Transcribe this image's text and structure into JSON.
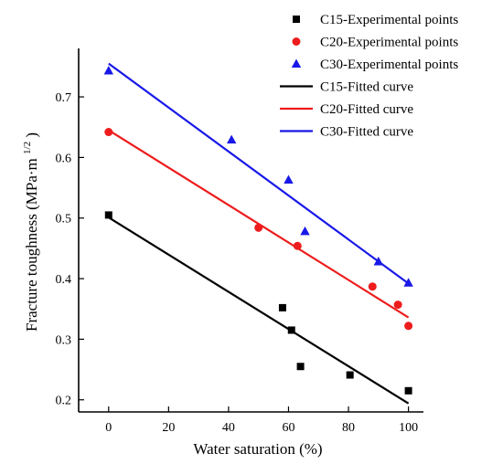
{
  "chart_data": {
    "type": "scatter",
    "xlabel": "Water saturation (%)",
    "ylabel": {
      "main": "Fracture toughness (MPa·m",
      "sup": "1/2",
      "close": ")"
    },
    "xlim": [
      -10,
      105
    ],
    "ylim": [
      0.18,
      0.78
    ],
    "xticks": [
      0,
      20,
      40,
      60,
      80,
      100
    ],
    "yticks": [
      0.2,
      0.3,
      0.4,
      0.5,
      0.6,
      0.7
    ],
    "legend_position": "top-right",
    "series": [
      {
        "name": "C15-Experimental points",
        "kind": "points",
        "marker": "square",
        "color": "#000000",
        "points": [
          {
            "x": 0,
            "y": 0.505
          },
          {
            "x": 58,
            "y": 0.352
          },
          {
            "x": 61,
            "y": 0.315
          },
          {
            "x": 64,
            "y": 0.255
          },
          {
            "x": 80.5,
            "y": 0.241
          },
          {
            "x": 100,
            "y": 0.215
          }
        ]
      },
      {
        "name": "C20-Experimental points",
        "kind": "points",
        "marker": "circle",
        "color": "#ee1c1c",
        "points": [
          {
            "x": 0,
            "y": 0.642
          },
          {
            "x": 50,
            "y": 0.484
          },
          {
            "x": 63,
            "y": 0.454
          },
          {
            "x": 88,
            "y": 0.387
          },
          {
            "x": 96.5,
            "y": 0.357
          },
          {
            "x": 100,
            "y": 0.322
          }
        ]
      },
      {
        "name": "C30-Experimental points",
        "kind": "points",
        "marker": "triangle",
        "color": "#1818e8",
        "points": [
          {
            "x": 0,
            "y": 0.743
          },
          {
            "x": 41,
            "y": 0.629
          },
          {
            "x": 60,
            "y": 0.563
          },
          {
            "x": 65.5,
            "y": 0.478
          },
          {
            "x": 90,
            "y": 0.428
          },
          {
            "x": 100,
            "y": 0.393
          }
        ]
      },
      {
        "name": "C15-Fitted curve",
        "kind": "line",
        "color": "#000000",
        "points": [
          {
            "x": 0,
            "y": 0.501
          },
          {
            "x": 100,
            "y": 0.194
          }
        ]
      },
      {
        "name": "C20-Fitted curve",
        "kind": "line",
        "color": "#ee1c1c",
        "points": [
          {
            "x": 0,
            "y": 0.645
          },
          {
            "x": 100,
            "y": 0.336
          }
        ]
      },
      {
        "name": "C30-Fitted curve",
        "kind": "line",
        "color": "#1818e8",
        "points": [
          {
            "x": 0,
            "y": 0.755
          },
          {
            "x": 100,
            "y": 0.392
          }
        ]
      }
    ]
  }
}
